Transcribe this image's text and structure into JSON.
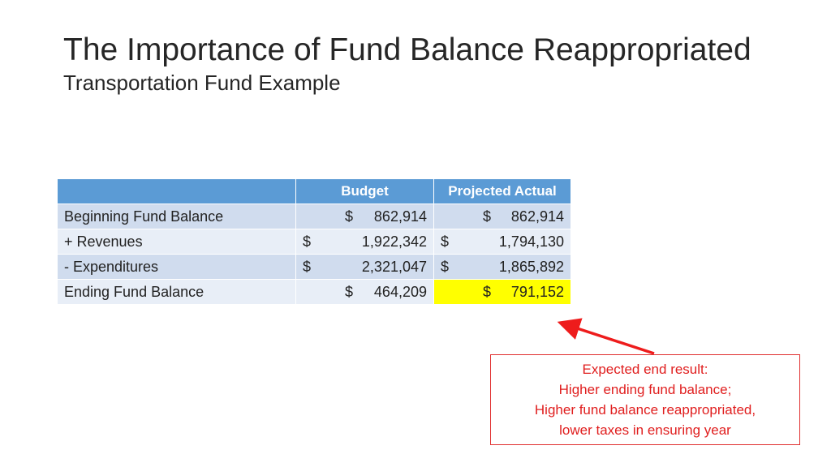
{
  "slide": {
    "title": "The Importance of Fund Balance Reappropriated",
    "subtitle": "Transportation Fund Example"
  },
  "table": {
    "headers": [
      "",
      "Budget",
      "Projected Actual"
    ],
    "rows": [
      {
        "label": "Beginning Fund Balance",
        "budget": {
          "sym": "$",
          "amt": "862,914"
        },
        "actual": {
          "sym": "$",
          "amt": "862,914"
        }
      },
      {
        "label": "+ Revenues",
        "budget": {
          "sym": "$",
          "amt": "1,922,342"
        },
        "actual": {
          "sym": "$",
          "amt": "1,794,130"
        }
      },
      {
        "label": "- Expenditures",
        "budget": {
          "sym": "$",
          "amt": "2,321,047"
        },
        "actual": {
          "sym": "$",
          "amt": "1,865,892"
        }
      },
      {
        "label": "Ending Fund Balance",
        "budget": {
          "sym": "$",
          "amt": "464,209"
        },
        "actual": {
          "sym": "$",
          "amt": "791,152"
        }
      }
    ],
    "header_color": "#5b9bd5",
    "highlight_color": "#ffff00"
  },
  "callout": {
    "lines": [
      "Expected end result:",
      "Higher ending fund balance;",
      "Higher fund balance reappropriated,",
      "lower taxes in ensuring year"
    ],
    "color": "#e01e1e"
  }
}
